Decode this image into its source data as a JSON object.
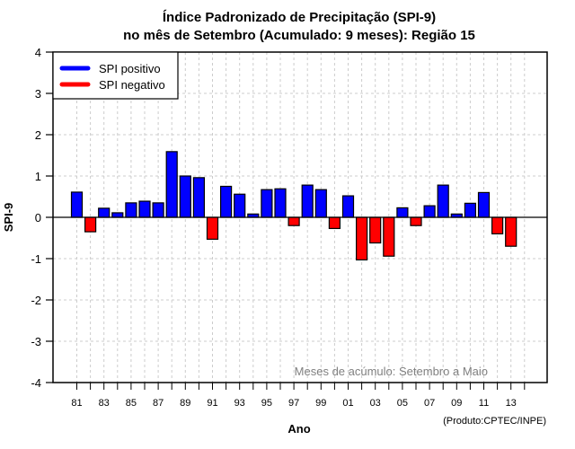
{
  "chart_data": {
    "type": "bar",
    "title_line1": "Índice Padronizado de Precipitação (SPI-9)",
    "title_line2": "no mês de Setembro (Acumulado: 9 meses): Região 15",
    "xlabel": "Ano",
    "ylabel": "SPI-9",
    "ylim": [
      -4,
      4
    ],
    "yticks": [
      "4",
      "3",
      "2",
      "1",
      "0",
      "-1",
      "-2",
      "-3",
      "-4"
    ],
    "ytick_values": [
      4,
      3,
      2,
      1,
      0,
      -1,
      -2,
      -3,
      -4
    ],
    "grid": true,
    "xtick_labels": [
      "81",
      "83",
      "85",
      "87",
      "89",
      "91",
      "93",
      "95",
      "97",
      "99",
      "01",
      "03",
      "05",
      "07",
      "09",
      "11",
      "13"
    ],
    "categories": [
      "81",
      "82",
      "83",
      "84",
      "85",
      "86",
      "87",
      "88",
      "89",
      "90",
      "91",
      "92",
      "93",
      "94",
      "95",
      "96",
      "97",
      "98",
      "99",
      "00",
      "01",
      "02",
      "03",
      "04",
      "05",
      "06",
      "07",
      "08",
      "09",
      "10",
      "11",
      "12",
      "13"
    ],
    "values": [
      0.61,
      -0.35,
      0.22,
      0.11,
      0.35,
      0.39,
      0.35,
      1.59,
      1.0,
      0.96,
      -0.53,
      0.75,
      0.56,
      0.08,
      0.67,
      0.69,
      -0.2,
      0.78,
      0.67,
      -0.27,
      0.52,
      -1.03,
      -0.62,
      -0.94,
      0.23,
      -0.2,
      0.28,
      0.78,
      0.08,
      0.34,
      0.6,
      -0.4,
      -0.7
    ],
    "legend": {
      "position": "top-left",
      "entries": [
        {
          "label": "SPI positivo",
          "color": "#0000ff"
        },
        {
          "label": "SPI negativo",
          "color": "#ff0000"
        }
      ]
    },
    "positive_color": "#0000ff",
    "negative_color": "#ff0000",
    "annotation": "Meses de acúmulo: Setembro a Maio",
    "credit": "(Produto:CPTEC/INPE)"
  }
}
